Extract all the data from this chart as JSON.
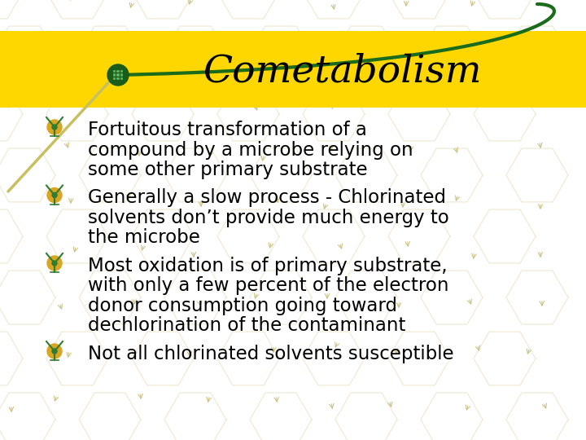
{
  "title": "Cometabolism",
  "title_fontsize": 34,
  "title_color": "#000000",
  "title_bg_color": "#FFD700",
  "bg_color": "#FFFFFF",
  "watermark_color": "#C8BC7A",
  "text_color": "#000000",
  "text_fontsize": 16.5,
  "arc_color": "#1A6B1A",
  "bullet_outer_color": "#DAA520",
  "bullet_inner_color": "#2E7D32",
  "lance_color": "#C8C060",
  "bullets": [
    {
      "lines": [
        "Fortuitous transformation of a",
        "compound by a microbe relying on",
        "some other primary substrate"
      ]
    },
    {
      "lines": [
        "Generally a slow process - Chlorinated",
        "solvents don’t provide much energy to",
        "the microbe"
      ]
    },
    {
      "lines": [
        "Most oxidation is of primary substrate,",
        "with only a few percent of the electron",
        "donor consumption going toward",
        "dechlorination of the contaminant"
      ]
    },
    {
      "lines": [
        "Not all chlorinated solvents susceptible"
      ]
    }
  ]
}
